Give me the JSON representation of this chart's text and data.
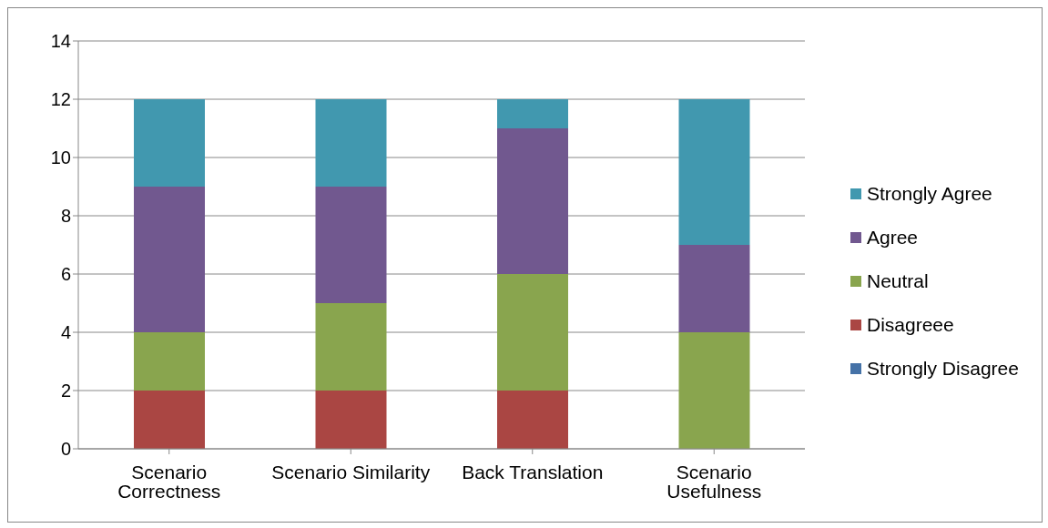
{
  "chart_data": {
    "type": "bar",
    "stacked": true,
    "categories": [
      "Scenario Correctness",
      "Scenario Similarity",
      "Back Translation",
      "Scenario Usefulness"
    ],
    "series": [
      {
        "name": "Strongly Disagree",
        "color": "#4572a7",
        "values": [
          0,
          0,
          0,
          0
        ]
      },
      {
        "name": "Disagreee",
        "color": "#aa4643",
        "values": [
          2,
          2,
          2,
          0
        ]
      },
      {
        "name": "Neutral",
        "color": "#89a54e",
        "values": [
          2,
          3,
          4,
          4
        ]
      },
      {
        "name": "Agree",
        "color": "#71588f",
        "values": [
          5,
          4,
          5,
          3
        ]
      },
      {
        "name": "Strongly Agree",
        "color": "#4198af",
        "values": [
          3,
          3,
          1,
          5
        ]
      }
    ],
    "ylim": [
      0,
      14
    ],
    "yticks": [
      0,
      2,
      4,
      6,
      8,
      10,
      12,
      14
    ],
    "grid": "y",
    "legend": "right"
  }
}
